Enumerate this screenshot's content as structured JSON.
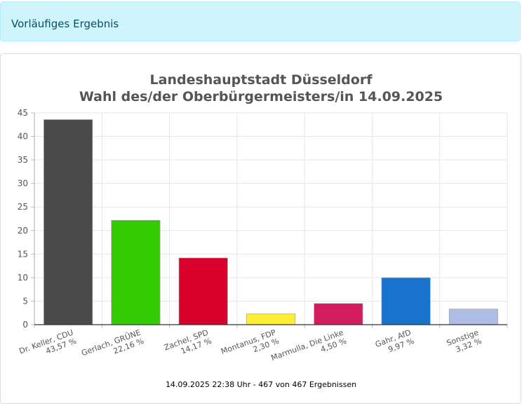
{
  "banner": {
    "text": "Vorläufiges Ergebnis"
  },
  "chart_data": {
    "type": "bar",
    "title": "Landeshauptstadt Düsseldorf",
    "subtitle": "Wahl des/der Oberbürgermeisters/in 14.09.2025",
    "ylim": [
      0,
      45
    ],
    "yticks": [
      0,
      5,
      10,
      15,
      20,
      25,
      30,
      35,
      40,
      45
    ],
    "grid": true,
    "categories": [
      "Dr. Keller, CDU",
      "Gerlach, GRÜNE",
      "Zachel, SPD",
      "Montanus, FDP",
      "Marmulla, Die Linke",
      "Gahr, AfD",
      "Sonstige"
    ],
    "value_labels": [
      "43,57 %",
      "22,16 %",
      "14,17 %",
      "2,30 %",
      "4,50 %",
      "9,97 %",
      "3,32 %"
    ],
    "values": [
      43.57,
      22.16,
      14.17,
      2.3,
      4.5,
      9.97,
      3.32
    ],
    "colors": [
      "#4a4a4a",
      "#33cc00",
      "#d9002b",
      "#fded34",
      "#d11d5c",
      "#1873cf",
      "#adbde6"
    ]
  },
  "footer": {
    "text": "14.09.2025 22:38 Uhr - 467 von 467 Ergebnissen"
  }
}
